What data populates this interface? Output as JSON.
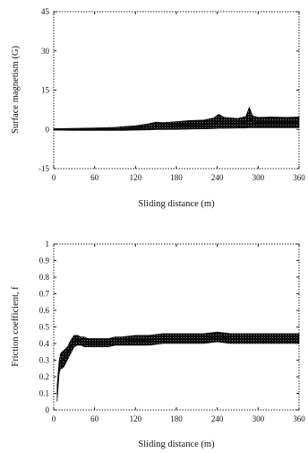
{
  "chart_data": [
    {
      "type": "area",
      "title": "",
      "xlabel": "Sliding distance (m)",
      "ylabel": "Surface magnetism (G)",
      "xlim": [
        0,
        360
      ],
      "ylim": [
        -15,
        45
      ],
      "xticks": [
        0,
        60,
        120,
        180,
        240,
        300,
        360
      ],
      "yticks": [
        -15,
        0,
        15,
        30,
        45
      ],
      "ytick_labels": [
        "-15",
        "0",
        "15",
        "30",
        "45"
      ],
      "grid": false,
      "frame": "dotted",
      "series": [
        {
          "x": [
            0,
            30,
            60,
            90,
            100,
            120,
            140,
            150,
            160,
            180,
            200,
            220,
            235,
            242,
            250,
            270,
            282,
            287,
            292,
            300,
            320,
            340,
            360
          ],
          "upper": [
            0.3,
            0.4,
            0.6,
            0.8,
            1.0,
            1.4,
            2.2,
            2.8,
            2.6,
            3.0,
            3.4,
            3.6,
            4.4,
            5.8,
            4.6,
            4.2,
            5.0,
            8.5,
            5.2,
            4.6,
            4.8,
            4.6,
            4.8
          ],
          "lower": [
            -0.3,
            -0.4,
            -0.4,
            -0.4,
            -0.4,
            -0.3,
            -0.2,
            -0.1,
            -0.1,
            0.0,
            0.1,
            0.2,
            0.3,
            0.4,
            0.4,
            0.5,
            0.5,
            0.6,
            0.6,
            0.6,
            0.6,
            0.6,
            0.6
          ]
        }
      ]
    },
    {
      "type": "line",
      "title": "",
      "xlabel": "Sliding distance (m)",
      "ylabel": "Friction coefficient, f",
      "xlim": [
        0,
        360
      ],
      "ylim": [
        0,
        1
      ],
      "xticks": [
        0,
        60,
        120,
        180,
        240,
        300,
        360
      ],
      "yticks": [
        0,
        0.1,
        0.2,
        0.3,
        0.4,
        0.5,
        0.6,
        0.7,
        0.8,
        0.9,
        1
      ],
      "ytick_labels": [
        "0",
        "0.1",
        "0.2",
        "0.3",
        "0.4",
        "0.5",
        "0.6",
        "0.7",
        "0.8",
        "0.9",
        "1"
      ],
      "grid": false,
      "frame": "dotted",
      "series": [
        {
          "x": [
            5,
            8,
            10,
            12,
            15,
            20,
            25,
            30,
            35,
            40,
            45,
            50,
            60,
            70,
            80,
            90,
            100,
            120,
            140,
            160,
            180,
            200,
            220,
            240,
            260,
            280,
            300,
            320,
            340,
            360
          ],
          "upper": [
            0.15,
            0.3,
            0.34,
            0.35,
            0.36,
            0.38,
            0.42,
            0.45,
            0.45,
            0.44,
            0.44,
            0.43,
            0.43,
            0.43,
            0.43,
            0.44,
            0.44,
            0.45,
            0.45,
            0.46,
            0.46,
            0.46,
            0.46,
            0.47,
            0.46,
            0.46,
            0.46,
            0.46,
            0.46,
            0.46
          ],
          "lower": [
            0.05,
            0.22,
            0.25,
            0.25,
            0.26,
            0.3,
            0.34,
            0.38,
            0.39,
            0.39,
            0.38,
            0.38,
            0.38,
            0.38,
            0.38,
            0.39,
            0.39,
            0.39,
            0.39,
            0.4,
            0.4,
            0.4,
            0.4,
            0.41,
            0.4,
            0.4,
            0.4,
            0.4,
            0.4,
            0.4
          ]
        }
      ]
    }
  ]
}
